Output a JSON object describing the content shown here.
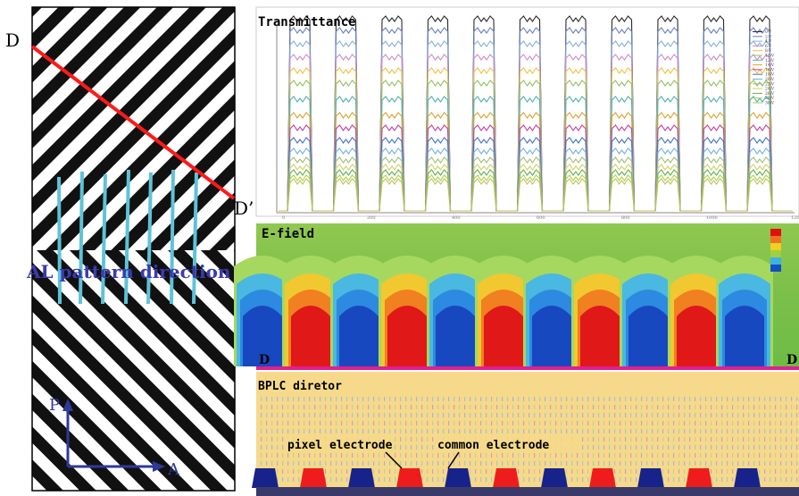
{
  "left_panel": {
    "label_d": "D",
    "label_d_prime": "D’",
    "al_pattern_label": "AL pattern direction",
    "axis_p": "P",
    "axis_a": "A"
  },
  "transmittance": {
    "title": "Transmittance",
    "x_ticks": [
      "0",
      "200",
      "400",
      "600",
      "800",
      "1000",
      "1200"
    ],
    "legend": [
      "0-V",
      "2-V",
      "4-V",
      "6-V",
      "8-V",
      "10-V",
      "12-V",
      "14-V",
      "16-V",
      "18-V",
      "20-V",
      "22-V",
      "24-V",
      "26-V",
      "28-V",
      "30-V"
    ],
    "colors": [
      "#2a2a2a",
      "#6a7fc2",
      "#8ab0d8",
      "#d08cc8",
      "#f0c040",
      "#90c060",
      "#50b0b0",
      "#e0a030",
      "#c040a0",
      "#4070d0",
      "#70b0e0",
      "#a0c070",
      "#d0d060",
      "#60b050",
      "#b0d040",
      "#c0c060"
    ]
  },
  "efield": {
    "title": "E-field",
    "label_left": "D",
    "label_right": "D",
    "colorbar_colors": [
      "#e01010",
      "#f07020",
      "#f0d020",
      "#a0d040",
      "#40b0e0",
      "#1050c0"
    ]
  },
  "bplc": {
    "title": "BPLC diretor",
    "pixel_label": "pixel electrode",
    "common_label": "common electrode",
    "pixel_color": "#ee1c1c",
    "common_color": "#17228a"
  }
}
